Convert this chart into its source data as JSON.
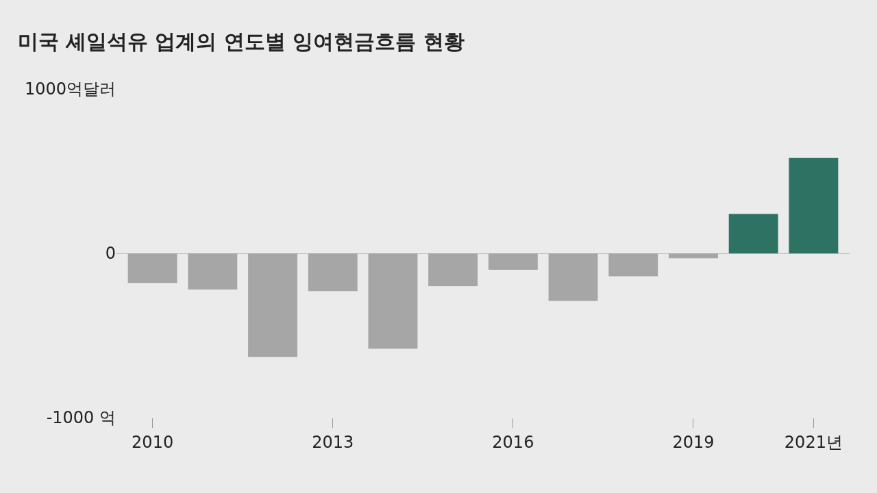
{
  "chart_data": {
    "type": "bar",
    "title": "미국 셰일석유 업계의 연도별 잉여현금흐름 현황",
    "categories": [
      "2010",
      null,
      null,
      "2013",
      null,
      null,
      "2016",
      null,
      null,
      "2019",
      null,
      "2021년"
    ],
    "values": [
      -180,
      -220,
      -630,
      -230,
      -580,
      -200,
      -100,
      -290,
      -140,
      -30,
      240,
      580
    ],
    "colors": [
      "#a6a6a6",
      "#a6a6a6",
      "#a6a6a6",
      "#a6a6a6",
      "#a6a6a6",
      "#a6a6a6",
      "#a6a6a6",
      "#a6a6a6",
      "#a6a6a6",
      "#a6a6a6",
      "#2e7264",
      "#2e7264"
    ],
    "ylim": [
      -1000,
      1000
    ],
    "yticks": [
      {
        "value": 1000,
        "label": "1000억달러"
      },
      0,
      {
        "value": -1000,
        "label": "-1000 억"
      }
    ],
    "grid": "y"
  }
}
